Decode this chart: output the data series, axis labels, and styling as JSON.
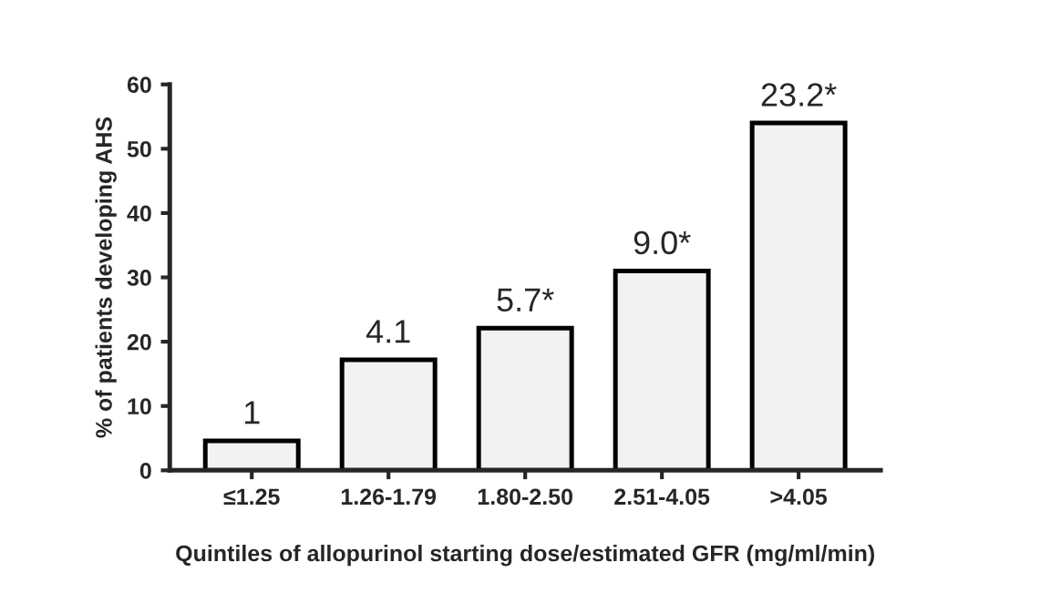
{
  "chart_data": {
    "type": "bar",
    "ylabel": "% of patients developing AHS",
    "xlabel": "Quintiles of allopurinol starting dose/estimated GFR (mg/ml/min)",
    "categories": [
      "≤1.25",
      "1.26-1.79",
      "1.80-2.50",
      "2.51-4.05",
      ">4.05"
    ],
    "values": [
      4.6,
      17.2,
      22.1,
      31,
      54
    ],
    "annotations": [
      {
        "text": "1",
        "x": "≤1.25",
        "y": 4.6
      },
      {
        "text": "4.1",
        "x": "1.26-1.79",
        "y": 17.2
      },
      {
        "text": "5.7*",
        "x": "1.80-2.50",
        "y": 22.1
      },
      {
        "text": "9.0*",
        "x": "2.51-4.05",
        "y": 31
      },
      {
        "text": "23.2*",
        "x": ">4.05",
        "y": 54
      }
    ],
    "color": "#f2f2f2",
    "ylim": [
      0,
      60
    ],
    "yticks": [
      0,
      10,
      20,
      30,
      40,
      50,
      60
    ],
    "grid": false,
    "legend": false
  }
}
